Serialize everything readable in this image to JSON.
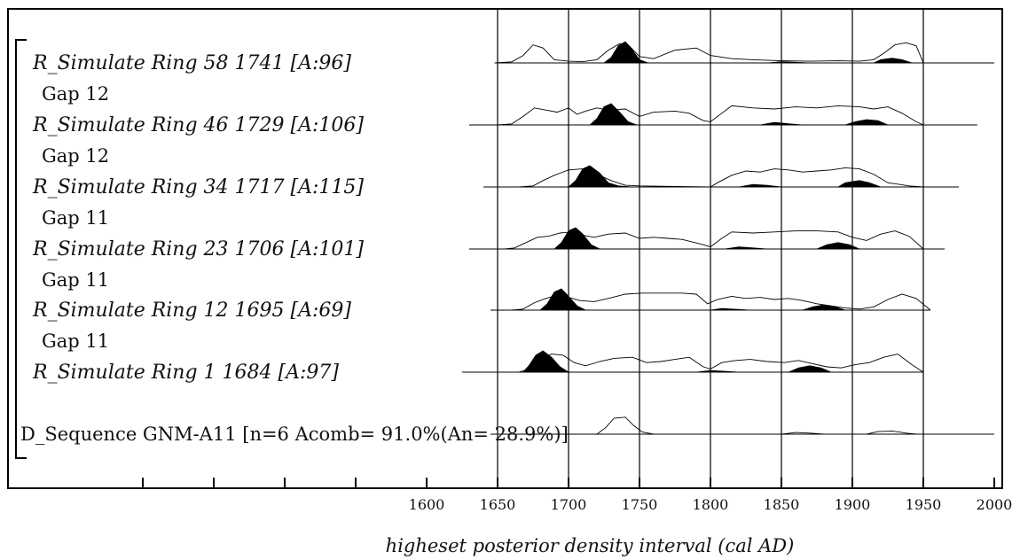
{
  "chart_data": {
    "type": "area",
    "xlabel": "higheset posterior density interval (cal AD)",
    "xlim": [
      1410,
      2000
    ],
    "x_ticks": [
      "1600",
      "1650",
      "1700",
      "1750",
      "1800",
      "1850",
      "1900",
      "1950",
      "2000"
    ],
    "x_ticks_unlabeled": [
      1400,
      1450,
      1500,
      1550
    ],
    "gridlines_x": [
      1650,
      1700,
      1750,
      1800,
      1850,
      1900,
      1950
    ],
    "bracket": true,
    "rows": [
      {
        "label": "R_Simulate Ring 58 1741 [A:96]",
        "style": "italic",
        "baseline": [
          1648,
          2000
        ],
        "prior": [
          [
            1648,
            0
          ],
          [
            1660,
            0.05
          ],
          [
            1668,
            0.35
          ],
          [
            1675,
            0.85
          ],
          [
            1682,
            0.7
          ],
          [
            1690,
            0.15
          ],
          [
            1700,
            0.08
          ],
          [
            1710,
            0.06
          ],
          [
            1720,
            0.15
          ],
          [
            1728,
            0.6
          ],
          [
            1736,
            0.9
          ],
          [
            1742,
            0.85
          ],
          [
            1750,
            0.3
          ],
          [
            1760,
            0.2
          ],
          [
            1775,
            0.6
          ],
          [
            1790,
            0.7
          ],
          [
            1800,
            0.35
          ],
          [
            1815,
            0.2
          ],
          [
            1830,
            0.15
          ],
          [
            1850,
            0.1
          ],
          [
            1870,
            0.08
          ],
          [
            1890,
            0.1
          ],
          [
            1905,
            0.08
          ],
          [
            1915,
            0.15
          ],
          [
            1922,
            0.45
          ],
          [
            1930,
            0.85
          ],
          [
            1938,
            0.95
          ],
          [
            1945,
            0.8
          ],
          [
            1950,
            0
          ]
        ],
        "posterior": [
          [
            1725,
            0
          ],
          [
            1730,
            0.25
          ],
          [
            1735,
            0.8
          ],
          [
            1740,
            1.0
          ],
          [
            1745,
            0.6
          ],
          [
            1750,
            0.15
          ],
          [
            1756,
            0
          ],
          [
            1840,
            0
          ],
          [
            1850,
            0.06
          ],
          [
            1860,
            0.03
          ],
          [
            1870,
            0
          ],
          [
            1915,
            0
          ],
          [
            1920,
            0.15
          ],
          [
            1928,
            0.22
          ],
          [
            1935,
            0.15
          ],
          [
            1942,
            0
          ]
        ]
      },
      {
        "label": "Gap 12",
        "style": "normal"
      },
      {
        "label": "R_Simulate Ring 46 1729 [A:106]",
        "style": "italic",
        "baseline": [
          1630,
          1988
        ],
        "prior": [
          [
            1650,
            0
          ],
          [
            1660,
            0.05
          ],
          [
            1668,
            0.4
          ],
          [
            1676,
            0.8
          ],
          [
            1684,
            0.7
          ],
          [
            1692,
            0.6
          ],
          [
            1700,
            0.8
          ],
          [
            1706,
            0.5
          ],
          [
            1712,
            0.65
          ],
          [
            1720,
            0.8
          ],
          [
            1728,
            0.7
          ],
          [
            1740,
            0.75
          ],
          [
            1750,
            0.4
          ],
          [
            1760,
            0.6
          ],
          [
            1775,
            0.65
          ],
          [
            1785,
            0.55
          ],
          [
            1795,
            0.2
          ],
          [
            1800,
            0.15
          ],
          [
            1808,
            0.55
          ],
          [
            1815,
            0.9
          ],
          [
            1830,
            0.8
          ],
          [
            1845,
            0.75
          ],
          [
            1860,
            0.85
          ],
          [
            1875,
            0.8
          ],
          [
            1890,
            0.9
          ],
          [
            1905,
            0.85
          ],
          [
            1915,
            0.75
          ],
          [
            1925,
            0.85
          ],
          [
            1935,
            0.55
          ],
          [
            1945,
            0.15
          ],
          [
            1950,
            0
          ]
        ],
        "posterior": [
          [
            1715,
            0
          ],
          [
            1720,
            0.3
          ],
          [
            1725,
            0.85
          ],
          [
            1730,
            1.0
          ],
          [
            1736,
            0.6
          ],
          [
            1742,
            0.15
          ],
          [
            1748,
            0
          ],
          [
            1835,
            0
          ],
          [
            1845,
            0.12
          ],
          [
            1855,
            0.06
          ],
          [
            1865,
            0
          ],
          [
            1895,
            0
          ],
          [
            1902,
            0.15
          ],
          [
            1910,
            0.25
          ],
          [
            1918,
            0.2
          ],
          [
            1925,
            0
          ]
        ]
      },
      {
        "label": "Gap 12",
        "style": "normal"
      },
      {
        "label": "R_Simulate Ring 34 1717 [A:115]",
        "style": "italic",
        "baseline": [
          1640,
          1975
        ],
        "prior": [
          [
            1665,
            0
          ],
          [
            1675,
            0.05
          ],
          [
            1682,
            0.3
          ],
          [
            1690,
            0.55
          ],
          [
            1700,
            0.8
          ],
          [
            1710,
            0.85
          ],
          [
            1720,
            0.6
          ],
          [
            1730,
            0.3
          ],
          [
            1740,
            0.08
          ],
          [
            1750,
            0.05
          ],
          [
            1770,
            0.03
          ],
          [
            1800,
            0
          ],
          [
            1805,
            0.2
          ],
          [
            1815,
            0.55
          ],
          [
            1825,
            0.75
          ],
          [
            1835,
            0.7
          ],
          [
            1845,
            0.85
          ],
          [
            1855,
            0.8
          ],
          [
            1865,
            0.7
          ],
          [
            1875,
            0.75
          ],
          [
            1885,
            0.8
          ],
          [
            1895,
            0.9
          ],
          [
            1905,
            0.85
          ],
          [
            1915,
            0.6
          ],
          [
            1925,
            0.2
          ],
          [
            1940,
            0.05
          ],
          [
            1950,
            0
          ]
        ],
        "posterior": [
          [
            1700,
            0
          ],
          [
            1705,
            0.3
          ],
          [
            1710,
            0.85
          ],
          [
            1715,
            1.0
          ],
          [
            1722,
            0.65
          ],
          [
            1728,
            0.2
          ],
          [
            1735,
            0.05
          ],
          [
            1745,
            0
          ],
          [
            1820,
            0
          ],
          [
            1830,
            0.12
          ],
          [
            1840,
            0.08
          ],
          [
            1850,
            0
          ],
          [
            1890,
            0
          ],
          [
            1895,
            0.2
          ],
          [
            1905,
            0.3
          ],
          [
            1912,
            0.2
          ],
          [
            1920,
            0
          ]
        ]
      },
      {
        "label": "Gap 11",
        "style": "normal"
      },
      {
        "label": "R_Simulate Ring 23 1706 [A:101]",
        "style": "italic",
        "baseline": [
          1630,
          1965
        ],
        "prior": [
          [
            1655,
            0
          ],
          [
            1662,
            0.05
          ],
          [
            1670,
            0.3
          ],
          [
            1678,
            0.55
          ],
          [
            1686,
            0.6
          ],
          [
            1694,
            0.75
          ],
          [
            1702,
            0.8
          ],
          [
            1710,
            0.65
          ],
          [
            1718,
            0.55
          ],
          [
            1728,
            0.7
          ],
          [
            1740,
            0.75
          ],
          [
            1750,
            0.5
          ],
          [
            1760,
            0.55
          ],
          [
            1770,
            0.5
          ],
          [
            1780,
            0.45
          ],
          [
            1795,
            0.2
          ],
          [
            1800,
            0.1
          ],
          [
            1808,
            0.5
          ],
          [
            1815,
            0.8
          ],
          [
            1830,
            0.75
          ],
          [
            1845,
            0.8
          ],
          [
            1860,
            0.85
          ],
          [
            1875,
            0.85
          ],
          [
            1890,
            0.8
          ],
          [
            1900,
            0.55
          ],
          [
            1910,
            0.4
          ],
          [
            1920,
            0.7
          ],
          [
            1930,
            0.85
          ],
          [
            1940,
            0.6
          ],
          [
            1950,
            0
          ]
        ],
        "posterior": [
          [
            1690,
            0
          ],
          [
            1695,
            0.3
          ],
          [
            1700,
            0.85
          ],
          [
            1705,
            1.0
          ],
          [
            1710,
            0.7
          ],
          [
            1716,
            0.2
          ],
          [
            1722,
            0
          ],
          [
            1810,
            0
          ],
          [
            1820,
            0.1
          ],
          [
            1830,
            0.05
          ],
          [
            1840,
            0
          ],
          [
            1875,
            0
          ],
          [
            1882,
            0.2
          ],
          [
            1890,
            0.3
          ],
          [
            1898,
            0.2
          ],
          [
            1905,
            0
          ]
        ]
      },
      {
        "label": "Gap 11",
        "style": "normal"
      },
      {
        "label": "R_Simulate Ring 12 1695 [A:69]",
        "style": "italic",
        "baseline": [
          1645,
          1955
        ],
        "prior": [
          [
            1660,
            0
          ],
          [
            1668,
            0.05
          ],
          [
            1676,
            0.35
          ],
          [
            1684,
            0.55
          ],
          [
            1692,
            0.7
          ],
          [
            1700,
            0.6
          ],
          [
            1708,
            0.45
          ],
          [
            1718,
            0.4
          ],
          [
            1728,
            0.55
          ],
          [
            1740,
            0.75
          ],
          [
            1752,
            0.8
          ],
          [
            1765,
            0.8
          ],
          [
            1780,
            0.8
          ],
          [
            1790,
            0.75
          ],
          [
            1798,
            0.3
          ],
          [
            1805,
            0.5
          ],
          [
            1815,
            0.65
          ],
          [
            1825,
            0.55
          ],
          [
            1835,
            0.6
          ],
          [
            1845,
            0.5
          ],
          [
            1855,
            0.55
          ],
          [
            1865,
            0.45
          ],
          [
            1875,
            0.3
          ],
          [
            1885,
            0.2
          ],
          [
            1895,
            0.1
          ],
          [
            1905,
            0.05
          ],
          [
            1915,
            0.15
          ],
          [
            1925,
            0.5
          ],
          [
            1935,
            0.75
          ],
          [
            1945,
            0.55
          ],
          [
            1955,
            0
          ]
        ],
        "posterior": [
          [
            1680,
            0
          ],
          [
            1685,
            0.3
          ],
          [
            1690,
            0.85
          ],
          [
            1695,
            1.0
          ],
          [
            1700,
            0.65
          ],
          [
            1706,
            0.2
          ],
          [
            1712,
            0
          ],
          [
            1800,
            0
          ],
          [
            1808,
            0.08
          ],
          [
            1818,
            0.04
          ],
          [
            1828,
            0
          ],
          [
            1865,
            0
          ],
          [
            1872,
            0.15
          ],
          [
            1880,
            0.25
          ],
          [
            1888,
            0.15
          ],
          [
            1895,
            0
          ]
        ]
      },
      {
        "label": "Gap 11",
        "style": "normal"
      },
      {
        "label": "R_Simulate Ring 1 1684 [A:97]",
        "style": "italic",
        "baseline": [
          1625,
          1950
        ],
        "prior": [
          [
            1665,
            0
          ],
          [
            1672,
            0.15
          ],
          [
            1680,
            0.6
          ],
          [
            1688,
            0.85
          ],
          [
            1696,
            0.8
          ],
          [
            1704,
            0.45
          ],
          [
            1712,
            0.3
          ],
          [
            1722,
            0.5
          ],
          [
            1732,
            0.65
          ],
          [
            1745,
            0.7
          ],
          [
            1755,
            0.45
          ],
          [
            1765,
            0.5
          ],
          [
            1775,
            0.6
          ],
          [
            1785,
            0.7
          ],
          [
            1795,
            0.25
          ],
          [
            1800,
            0.15
          ],
          [
            1808,
            0.45
          ],
          [
            1818,
            0.55
          ],
          [
            1828,
            0.6
          ],
          [
            1840,
            0.5
          ],
          [
            1852,
            0.45
          ],
          [
            1862,
            0.55
          ],
          [
            1872,
            0.4
          ],
          [
            1882,
            0.25
          ],
          [
            1892,
            0.2
          ],
          [
            1902,
            0.35
          ],
          [
            1912,
            0.45
          ],
          [
            1922,
            0.7
          ],
          [
            1932,
            0.85
          ],
          [
            1942,
            0.35
          ],
          [
            1950,
            0
          ]
        ],
        "posterior": [
          [
            1668,
            0
          ],
          [
            1672,
            0.3
          ],
          [
            1677,
            0.8
          ],
          [
            1682,
            1.0
          ],
          [
            1688,
            0.7
          ],
          [
            1694,
            0.25
          ],
          [
            1700,
            0
          ],
          [
            1790,
            0
          ],
          [
            1800,
            0.08
          ],
          [
            1810,
            0.04
          ],
          [
            1820,
            0
          ],
          [
            1855,
            0
          ],
          [
            1862,
            0.2
          ],
          [
            1870,
            0.3
          ],
          [
            1878,
            0.2
          ],
          [
            1885,
            0
          ]
        ]
      },
      {
        "label": "D_Sequence GNM-A11 [n=6 Acomb= 91.0%(An= 28.9%)]",
        "style": "normal",
        "baseline": [
          1645,
          2000
        ],
        "prior": [
          [
            1720,
            0
          ],
          [
            1726,
            0.3
          ],
          [
            1732,
            0.75
          ],
          [
            1740,
            0.8
          ],
          [
            1746,
            0.4
          ],
          [
            1752,
            0.1
          ],
          [
            1760,
            0
          ],
          [
            1850,
            0
          ],
          [
            1860,
            0.08
          ],
          [
            1870,
            0.05
          ],
          [
            1880,
            0
          ],
          [
            1910,
            0
          ],
          [
            1918,
            0.12
          ],
          [
            1928,
            0.15
          ],
          [
            1938,
            0.05
          ],
          [
            1945,
            0
          ]
        ],
        "posterior": []
      }
    ]
  }
}
